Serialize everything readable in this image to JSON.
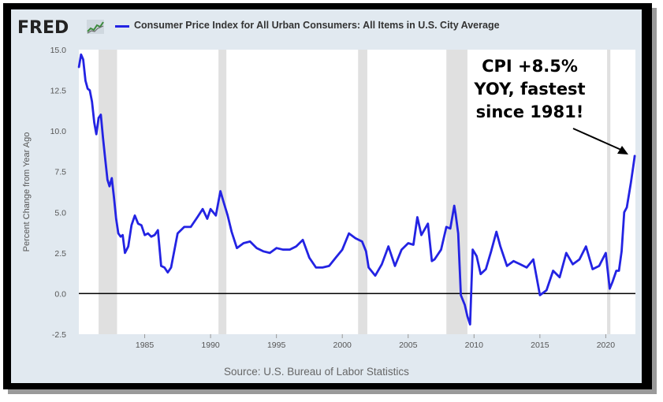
{
  "header": {
    "logo_text": "FRED",
    "title": "Consumer Price Index for All Urban Consumers: All Items in U.S. City Average"
  },
  "source": "Source: U.S. Bureau of Labor Statistics",
  "callout": "CPI +8.5%\nYOY, fastest\nsince 1981!",
  "colors": {
    "series": "#2323e3",
    "panel": "#e1e9f0",
    "plot_bg": "#ffffff",
    "recession": "#e0e0e0"
  },
  "chart_data": {
    "type": "line",
    "title": "Consumer Price Index for All Urban Consumers: All Items in U.S. City Average",
    "ylabel": "Percent Change from Year Ago",
    "xlabel": "",
    "xlim": [
      1980.0,
      2022.25
    ],
    "ylim": [
      -2.5,
      15.0
    ],
    "x_ticks": [
      1985,
      1990,
      1995,
      2000,
      2005,
      2010,
      2015,
      2020
    ],
    "y_ticks": [
      -2.5,
      0.0,
      2.5,
      5.0,
      7.5,
      10.0,
      12.5,
      15.0
    ],
    "y_tick_labels": [
      "-2.5",
      "0.0",
      "2.5",
      "5.0",
      "7.5",
      "10.0",
      "12.5",
      "15.0"
    ],
    "grid": false,
    "zero_line": true,
    "recessions": [
      [
        1981.5,
        1982.9
      ],
      [
        1990.6,
        1991.2
      ],
      [
        2001.2,
        2001.9
      ],
      [
        2007.9,
        2009.5
      ],
      [
        2020.1,
        2020.35
      ]
    ],
    "series": [
      {
        "name": "Consumer Price Index for All Urban Consumers: All Items in U.S. City Average",
        "x": [
          1980.0,
          1980.17,
          1980.33,
          1980.5,
          1980.67,
          1980.83,
          1981.0,
          1981.17,
          1981.33,
          1981.5,
          1981.67,
          1981.83,
          1982.0,
          1982.17,
          1982.33,
          1982.5,
          1982.67,
          1982.83,
          1983.0,
          1983.17,
          1983.33,
          1983.5,
          1983.75,
          1984.0,
          1984.25,
          1984.5,
          1984.75,
          1985.0,
          1985.25,
          1985.5,
          1985.75,
          1986.0,
          1986.25,
          1986.5,
          1986.75,
          1987.0,
          1987.5,
          1988.0,
          1988.5,
          1989.0,
          1989.4,
          1989.75,
          1990.0,
          1990.4,
          1990.75,
          1991.0,
          1991.3,
          1991.6,
          1992.0,
          1992.5,
          1993.0,
          1993.5,
          1994.0,
          1994.5,
          1995.0,
          1995.5,
          1996.0,
          1996.5,
          1997.0,
          1997.5,
          1998.0,
          1998.5,
          1999.0,
          1999.5,
          2000.0,
          2000.5,
          2001.0,
          2001.5,
          2001.8,
          2002.0,
          2002.5,
          2003.0,
          2003.5,
          2004.0,
          2004.5,
          2005.0,
          2005.4,
          2005.7,
          2006.0,
          2006.5,
          2006.8,
          2007.0,
          2007.5,
          2007.9,
          2008.2,
          2008.5,
          2008.6,
          2008.8,
          2009.0,
          2009.3,
          2009.5,
          2009.7,
          2009.9,
          2010.2,
          2010.5,
          2010.9,
          2011.3,
          2011.7,
          2012.0,
          2012.5,
          2013.0,
          2013.5,
          2014.0,
          2014.5,
          2015.0,
          2015.5,
          2016.0,
          2016.5,
          2017.0,
          2017.5,
          2018.0,
          2018.5,
          2019.0,
          2019.5,
          2020.0,
          2020.3,
          2020.5,
          2020.8,
          2021.0,
          2021.2,
          2021.4,
          2021.6,
          2021.9,
          2022.1,
          2022.2
        ],
        "values": [
          13.9,
          14.7,
          14.4,
          13.1,
          12.6,
          12.5,
          11.8,
          10.5,
          9.8,
          10.8,
          11.0,
          9.6,
          8.3,
          7.0,
          6.6,
          7.1,
          5.9,
          4.6,
          3.7,
          3.5,
          3.6,
          2.5,
          2.9,
          4.2,
          4.8,
          4.3,
          4.2,
          3.6,
          3.7,
          3.5,
          3.6,
          3.9,
          1.7,
          1.6,
          1.3,
          1.6,
          3.7,
          4.1,
          4.1,
          4.7,
          5.2,
          4.6,
          5.2,
          4.8,
          6.3,
          5.6,
          4.8,
          3.8,
          2.8,
          3.1,
          3.2,
          2.8,
          2.6,
          2.5,
          2.8,
          2.7,
          2.7,
          2.9,
          3.3,
          2.2,
          1.6,
          1.6,
          1.7,
          2.2,
          2.7,
          3.7,
          3.4,
          3.2,
          2.6,
          1.6,
          1.1,
          1.8,
          2.9,
          1.7,
          2.7,
          3.1,
          3.0,
          4.7,
          3.6,
          4.3,
          2.0,
          2.1,
          2.7,
          4.1,
          4.0,
          5.4,
          4.9,
          3.7,
          -0.1,
          -0.7,
          -1.4,
          -1.9,
          2.7,
          2.3,
          1.2,
          1.5,
          2.6,
          3.8,
          2.9,
          1.7,
          2.0,
          1.8,
          1.6,
          2.1,
          -0.1,
          0.2,
          1.4,
          1.0,
          2.5,
          1.8,
          2.1,
          2.9,
          1.5,
          1.7,
          2.5,
          0.3,
          0.7,
          1.4,
          1.4,
          2.6,
          5.0,
          5.3,
          6.8,
          7.9,
          8.5
        ]
      }
    ]
  }
}
